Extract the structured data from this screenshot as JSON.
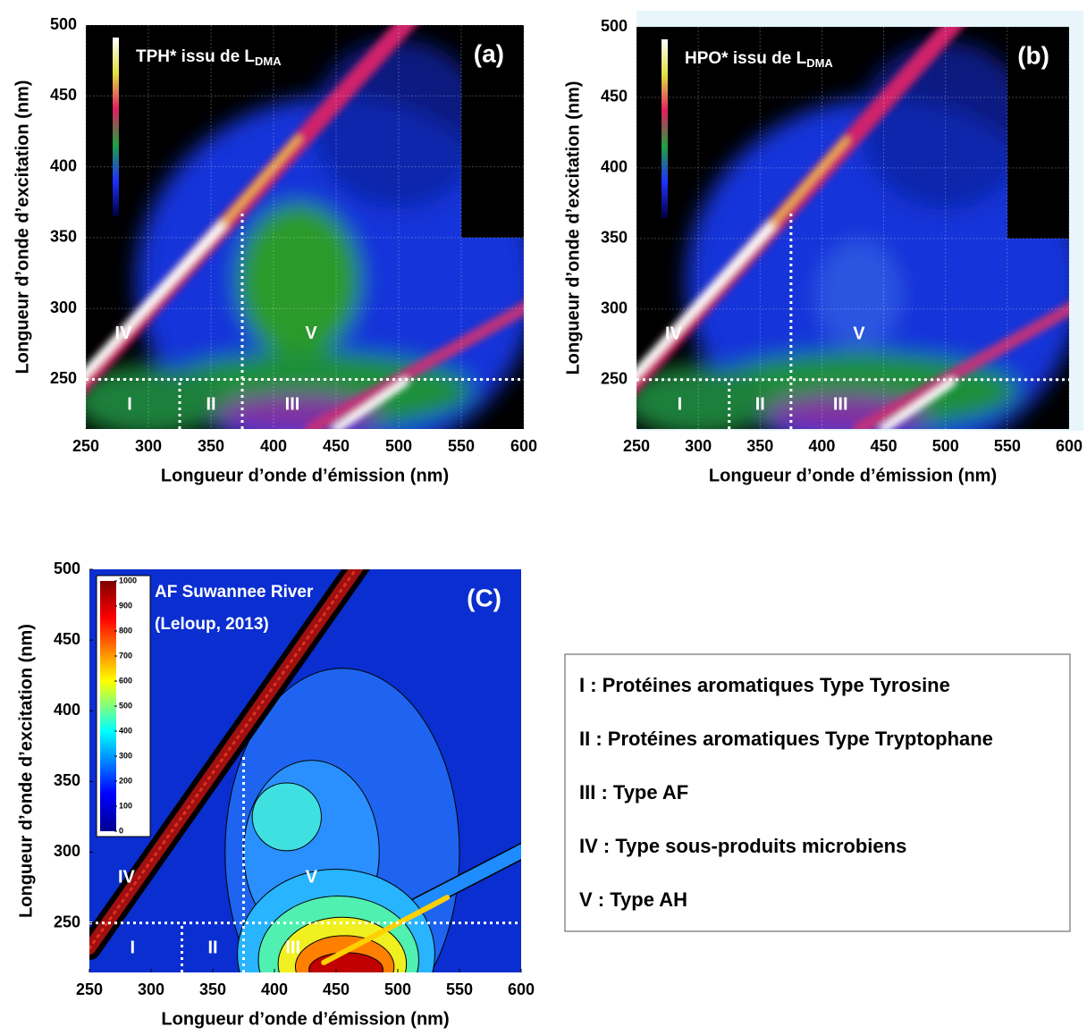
{
  "chart_data": [
    {
      "type": "heatmap",
      "panel": "(a)",
      "title": "TPH* issu de L",
      "title_subscript": "DMA",
      "xlabel": "Longueur d’onde d’émission (nm)",
      "ylabel": "Longueur d’onde d’excitation (nm)",
      "xlim": [
        250,
        600
      ],
      "ylim": [
        215,
        500
      ],
      "xticks": [
        250,
        300,
        350,
        400,
        450,
        500,
        550,
        600
      ],
      "yticks": [
        250,
        300,
        350,
        400,
        450,
        500
      ],
      "grid": true,
      "regions": [
        "I",
        "II",
        "III",
        "IV",
        "V"
      ],
      "boundaries": {
        "x": [
          325,
          375
        ],
        "y": 250
      }
    },
    {
      "type": "heatmap",
      "panel": "(b)",
      "title": "HPO* issu de L",
      "title_subscript": "DMA",
      "xlabel": "Longueur d’onde d’émission (nm)",
      "ylabel": "Longueur d’onde d’excitation (nm)",
      "xlim": [
        250,
        600
      ],
      "ylim": [
        215,
        500
      ],
      "xticks": [
        250,
        300,
        350,
        400,
        450,
        500,
        550,
        600
      ],
      "yticks": [
        250,
        300,
        350,
        400,
        450,
        500
      ],
      "grid": true,
      "regions": [
        "I",
        "II",
        "III",
        "IV",
        "V"
      ],
      "boundaries": {
        "x": [
          325,
          375
        ],
        "y": 250
      }
    },
    {
      "type": "contour",
      "panel": "(C)",
      "title": "AF Suwannee River",
      "subtitle": "(Leloup, 2013)",
      "xlabel": "Longueur d’onde d’émission (nm)",
      "ylabel": "Longueur d’onde d’excitation (nm)",
      "xlim": [
        250,
        600
      ],
      "ylim": [
        215,
        500
      ],
      "xticks": [
        250,
        300,
        350,
        400,
        450,
        500,
        550,
        600
      ],
      "yticks": [
        250,
        300,
        350,
        400,
        450,
        500
      ],
      "grid": false,
      "regions": [
        "I",
        "II",
        "III",
        "IV",
        "V"
      ],
      "boundaries": {
        "x": [
          325,
          375
        ],
        "y": 250
      },
      "colorbar": {
        "lim": [
          0,
          1000
        ],
        "ticks": [
          0,
          100,
          200,
          300,
          400,
          500,
          600,
          700,
          800,
          900,
          1000
        ]
      }
    }
  ],
  "legend_box": {
    "items": [
      "I : Protéines aromatiques Type Tyrosine",
      "II : Protéines aromatiques Type Tryptophane",
      "III : Type AF",
      "IV : Type sous-produits microbiens",
      "V : Type AH"
    ]
  }
}
